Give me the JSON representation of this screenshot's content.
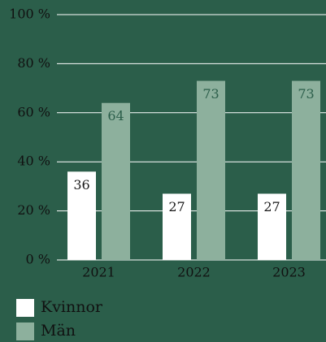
{
  "chart_data": {
    "type": "bar",
    "categories": [
      "2021",
      "2022",
      "2023"
    ],
    "series": [
      {
        "name": "Kvinnor",
        "color": "#ffffff",
        "values": [
          36,
          27,
          27
        ]
      },
      {
        "name": "Män",
        "color": "#8db09d",
        "values": [
          64,
          73,
          73
        ]
      }
    ],
    "ylim": [
      0,
      100
    ],
    "yticks": [
      {
        "value": 0,
        "label": "0 %"
      },
      {
        "value": 20,
        "label": "20 %"
      },
      {
        "value": 40,
        "label": "40 %"
      },
      {
        "value": 60,
        "label": "60 %"
      },
      {
        "value": 80,
        "label": "80 %"
      },
      {
        "value": 100,
        "label": "100 %"
      }
    ],
    "grid": true,
    "legend": "bottom-left"
  }
}
